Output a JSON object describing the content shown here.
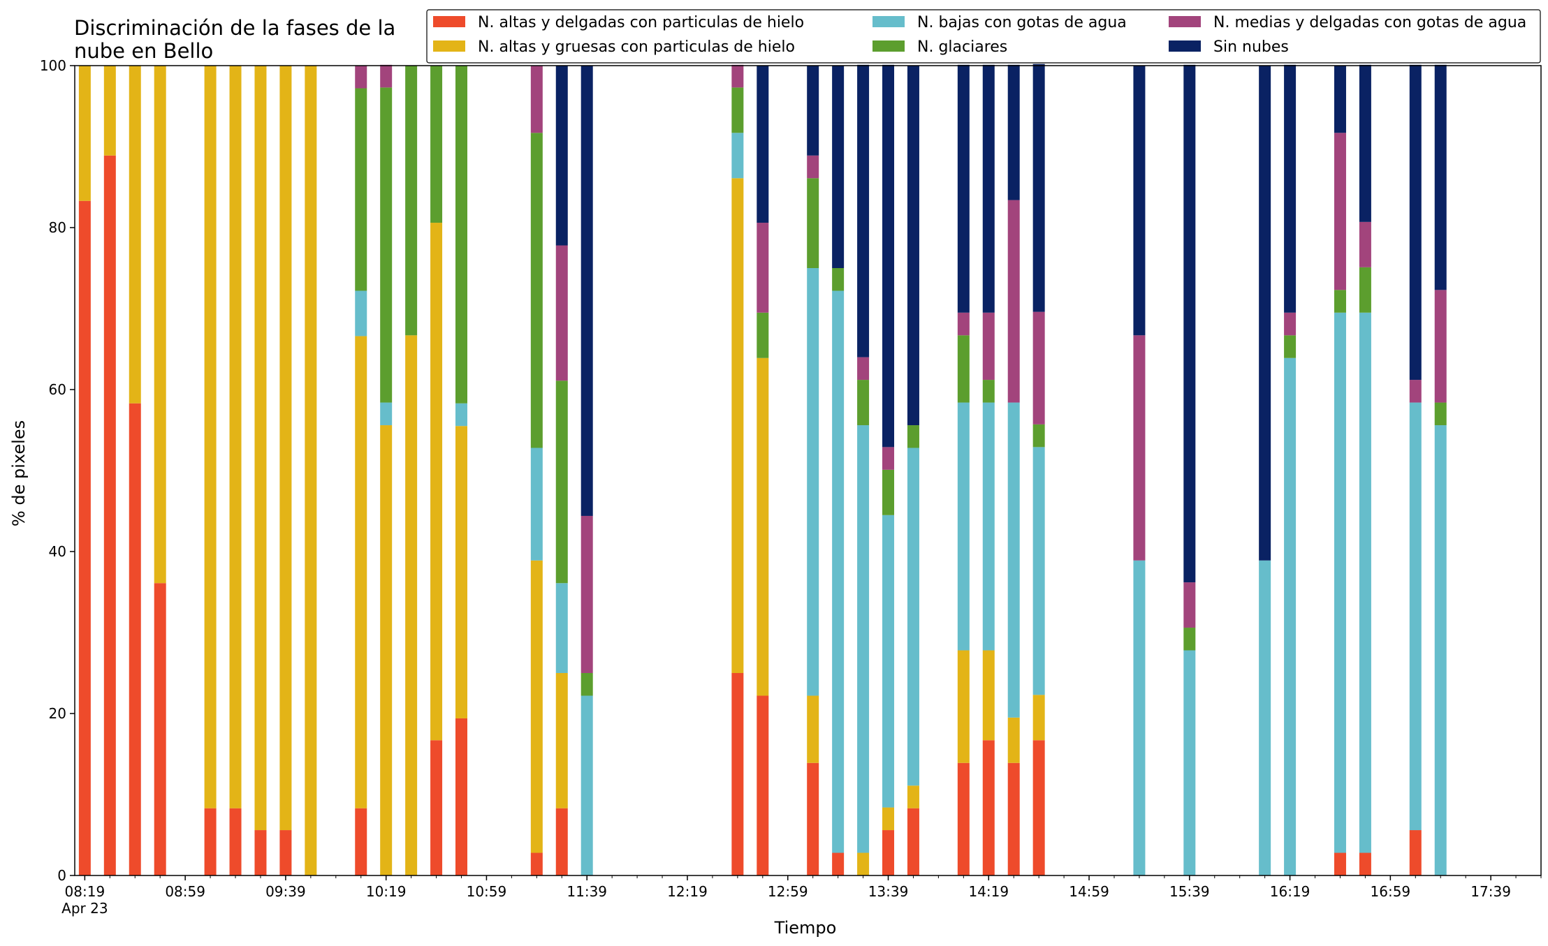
{
  "chart_data": {
    "type": "bar",
    "stacked": true,
    "title": "Discriminación de la fases de la\nnube en Bello",
    "xlabel": "Tiempo",
    "ylabel": "% de pixeles",
    "ylim": [
      0,
      100
    ],
    "y_ticks": [
      0,
      20,
      40,
      60,
      80,
      100
    ],
    "x_range_minutes_since_0800": [
      15,
      599
    ],
    "x_ticks": [
      {
        "label": "08:19",
        "sublabel": "Apr 23",
        "minute": 19
      },
      {
        "label": "08:59",
        "minute": 59
      },
      {
        "label": "09:39",
        "minute": 99
      },
      {
        "label": "10:19",
        "minute": 139
      },
      {
        "label": "10:59",
        "minute": 179
      },
      {
        "label": "11:39",
        "minute": 219
      },
      {
        "label": "12:19",
        "minute": 259
      },
      {
        "label": "12:59",
        "minute": 299
      },
      {
        "label": "13:39",
        "minute": 339
      },
      {
        "label": "14:19",
        "minute": 379
      },
      {
        "label": "14:59",
        "minute": 419
      },
      {
        "label": "15:39",
        "minute": 459
      },
      {
        "label": "16:19",
        "minute": 499
      },
      {
        "label": "16:59",
        "minute": 539
      },
      {
        "label": "17:39",
        "minute": 579
      }
    ],
    "legend_position": "top-right",
    "series": [
      {
        "name": "N. altas y delgadas con particulas de hielo",
        "color": "#EE4B2B"
      },
      {
        "name": "N. altas y gruesas con particulas de hielo",
        "color": "#E3B417"
      },
      {
        "name": "N. bajas con gotas de agua",
        "color": "#66BDCB"
      },
      {
        "name": "N. glaciares",
        "color": "#5C9E2E"
      },
      {
        "name": "N. medias y delgadas con gotas de agua",
        "color": "#A2447C"
      },
      {
        "name": "Sin nubes",
        "color": "#0A2263"
      }
    ],
    "bars": [
      {
        "minute": 19,
        "values": [
          83.3,
          16.7,
          0,
          0,
          0,
          0
        ]
      },
      {
        "minute": 29,
        "values": [
          88.9,
          11.1,
          0,
          0,
          0,
          0
        ]
      },
      {
        "minute": 39,
        "values": [
          58.3,
          41.7,
          0,
          0,
          0,
          0
        ]
      },
      {
        "minute": 49,
        "values": [
          36.1,
          63.9,
          0,
          0,
          0,
          0
        ]
      },
      {
        "minute": 69,
        "values": [
          8.3,
          91.7,
          0,
          0,
          0,
          0
        ]
      },
      {
        "minute": 79,
        "values": [
          8.3,
          91.7,
          0,
          0,
          0,
          0
        ]
      },
      {
        "minute": 89,
        "values": [
          5.6,
          94.4,
          0,
          0,
          0,
          0
        ]
      },
      {
        "minute": 99,
        "values": [
          5.6,
          94.4,
          0,
          0,
          0,
          0
        ]
      },
      {
        "minute": 109,
        "values": [
          0,
          100,
          0,
          0,
          0,
          0
        ]
      },
      {
        "minute": 129,
        "values": [
          8.3,
          58.3,
          5.6,
          25.0,
          2.8,
          0
        ]
      },
      {
        "minute": 139,
        "values": [
          0,
          55.6,
          2.8,
          38.9,
          2.8,
          0
        ]
      },
      {
        "minute": 149,
        "values": [
          0,
          66.7,
          0,
          33.3,
          0,
          0
        ]
      },
      {
        "minute": 159,
        "values": [
          16.7,
          63.9,
          0,
          19.4,
          0,
          0
        ]
      },
      {
        "minute": 169,
        "values": [
          19.4,
          36.1,
          2.8,
          41.7,
          0,
          0
        ]
      },
      {
        "minute": 199,
        "values": [
          2.8,
          36.1,
          13.9,
          38.9,
          8.3,
          0
        ]
      },
      {
        "minute": 209,
        "values": [
          8.3,
          16.7,
          11.1,
          25.0,
          16.7,
          22.2
        ]
      },
      {
        "minute": 219,
        "values": [
          0,
          0,
          22.2,
          2.8,
          19.4,
          55.6
        ]
      },
      {
        "minute": 279,
        "values": [
          25.0,
          61.1,
          5.6,
          5.6,
          2.8,
          0
        ]
      },
      {
        "minute": 289,
        "values": [
          22.2,
          41.7,
          0,
          5.6,
          11.1,
          19.4
        ]
      },
      {
        "minute": 309,
        "values": [
          13.9,
          8.3,
          52.8,
          11.1,
          2.8,
          11.1
        ]
      },
      {
        "minute": 319,
        "values": [
          2.8,
          0,
          69.4,
          2.8,
          0,
          25.0
        ]
      },
      {
        "minute": 329,
        "values": [
          0,
          2.8,
          52.8,
          5.6,
          2.8,
          36.1
        ]
      },
      {
        "minute": 339,
        "values": [
          5.6,
          2.8,
          36.1,
          5.6,
          2.8,
          47.2
        ]
      },
      {
        "minute": 349,
        "values": [
          8.3,
          2.8,
          41.7,
          2.8,
          0,
          44.4
        ]
      },
      {
        "minute": 369,
        "values": [
          13.9,
          13.9,
          30.6,
          8.3,
          2.8,
          30.6
        ]
      },
      {
        "minute": 379,
        "values": [
          16.7,
          11.1,
          30.6,
          2.8,
          8.3,
          30.6
        ]
      },
      {
        "minute": 389,
        "values": [
          13.9,
          5.6,
          38.9,
          0,
          25.0,
          16.7
        ]
      },
      {
        "minute": 399,
        "values": [
          16.7,
          5.6,
          30.6,
          2.8,
          13.9,
          30.6
        ]
      },
      {
        "minute": 439,
        "values": [
          0,
          0,
          38.9,
          0,
          27.8,
          33.3
        ]
      },
      {
        "minute": 459,
        "values": [
          0,
          0,
          27.8,
          2.8,
          5.6,
          63.9
        ]
      },
      {
        "minute": 489,
        "values": [
          0,
          0,
          38.9,
          0,
          0,
          61.1
        ]
      },
      {
        "minute": 499,
        "values": [
          0,
          0,
          63.9,
          2.8,
          2.8,
          30.6
        ]
      },
      {
        "minute": 519,
        "values": [
          2.8,
          0,
          66.7,
          2.8,
          19.4,
          8.3
        ]
      },
      {
        "minute": 529,
        "values": [
          2.8,
          0,
          66.7,
          5.6,
          5.6,
          19.4
        ]
      },
      {
        "minute": 549,
        "values": [
          5.6,
          0,
          52.8,
          0,
          2.8,
          38.9
        ]
      },
      {
        "minute": 559,
        "values": [
          0,
          0,
          55.6,
          2.8,
          13.9,
          27.8
        ]
      }
    ]
  }
}
